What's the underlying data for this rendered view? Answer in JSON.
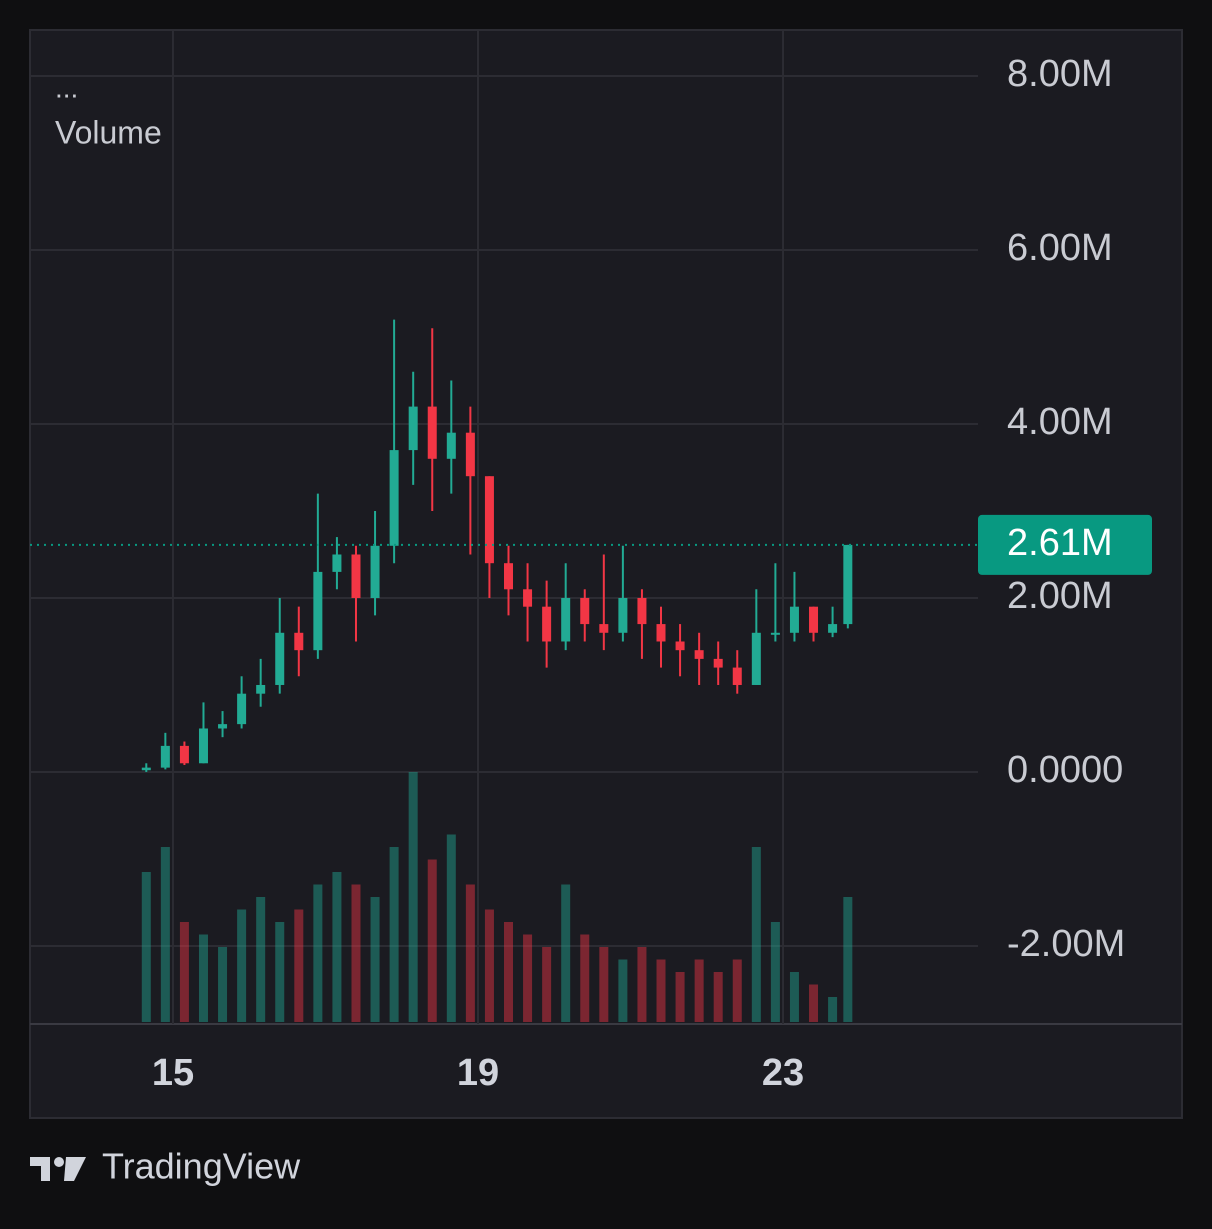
{
  "header": {
    "menu": "...",
    "indicator": "Volume"
  },
  "chart_data": {
    "type": "candlestick",
    "x": [
      14.65,
      14.9,
      15.15,
      15.4,
      15.65,
      15.9,
      16.15,
      16.4,
      16.65,
      16.9,
      17.15,
      17.4,
      17.65,
      17.9,
      18.15,
      18.4,
      18.65,
      18.9,
      19.15,
      19.4,
      19.65,
      19.9,
      20.15,
      20.4,
      20.65,
      20.9,
      21.15,
      21.4,
      21.65,
      21.9,
      22.15,
      22.4,
      22.65,
      22.9,
      23.15,
      23.4,
      23.65,
      23.85
    ],
    "open": [
      20000,
      50000,
      300000,
      100000,
      500000,
      550000,
      900000,
      1000000,
      1600000,
      1400000,
      2300000,
      2500000,
      2000000,
      2600000,
      3700000,
      4200000,
      3600000,
      3900000,
      3400000,
      2400000,
      2100000,
      1900000,
      1500000,
      2000000,
      1700000,
      1600000,
      2000000,
      1700000,
      1500000,
      1400000,
      1300000,
      1200000,
      1000000,
      1600000,
      1600000,
      1900000,
      1600000,
      1700000
    ],
    "high": [
      100000,
      450000,
      350000,
      800000,
      700000,
      1100000,
      1300000,
      2000000,
      1900000,
      3200000,
      2700000,
      2600000,
      3000000,
      5200000,
      4600000,
      5100000,
      4500000,
      4200000,
      3400000,
      2600000,
      2400000,
      2200000,
      2400000,
      2100000,
      2500000,
      2600000,
      2100000,
      1900000,
      1700000,
      1600000,
      1500000,
      1400000,
      2100000,
      2400000,
      2300000,
      1900000,
      1900000,
      2610000
    ],
    "low": [
      0,
      30000,
      80000,
      100000,
      400000,
      500000,
      750000,
      900000,
      1100000,
      1300000,
      2100000,
      1500000,
      1800000,
      2400000,
      3300000,
      3000000,
      3200000,
      2500000,
      2000000,
      1800000,
      1500000,
      1200000,
      1400000,
      1500000,
      1400000,
      1500000,
      1300000,
      1200000,
      1100000,
      1000000,
      1000000,
      900000,
      1000000,
      1500000,
      1500000,
      1500000,
      1550000,
      1650000
    ],
    "close": [
      50000,
      300000,
      100000,
      500000,
      550000,
      900000,
      1000000,
      1600000,
      1400000,
      2300000,
      2500000,
      2000000,
      2600000,
      3700000,
      4200000,
      3600000,
      3900000,
      3400000,
      2400000,
      2100000,
      1900000,
      1500000,
      2000000,
      1700000,
      1600000,
      2000000,
      1700000,
      1500000,
      1400000,
      1300000,
      1200000,
      1000000,
      1600000,
      1600000,
      1900000,
      1600000,
      1700000,
      2610000
    ],
    "volume": [
      60,
      70,
      40,
      35,
      30,
      45,
      50,
      40,
      45,
      55,
      60,
      55,
      50,
      70,
      100,
      65,
      75,
      55,
      45,
      40,
      35,
      30,
      55,
      35,
      30,
      25,
      30,
      25,
      20,
      25,
      20,
      25,
      70,
      40,
      20,
      15,
      10,
      50
    ],
    "up_color": "#22ab94",
    "down_color": "#f23645",
    "xlim": [
      13.125,
      25.557
    ],
    "xticks": [
      15,
      19,
      23
    ],
    "ylim": [
      -2897000,
      8529000
    ],
    "yticks": [
      {
        "value": -2000000,
        "label": "-2.00M"
      },
      {
        "value": 0,
        "label": "0.0000"
      },
      {
        "value": 2000000,
        "label": "2.00M"
      },
      {
        "value": 4000000,
        "label": "4.00M"
      },
      {
        "value": 6000000,
        "label": "6.00M"
      },
      {
        "value": 8000000,
        "label": "8.00M"
      }
    ],
    "grid": true,
    "price_line": {
      "value": 2610000,
      "label": "2.61M",
      "color": "#089981"
    }
  },
  "footer": {
    "brand": "TradingView"
  }
}
